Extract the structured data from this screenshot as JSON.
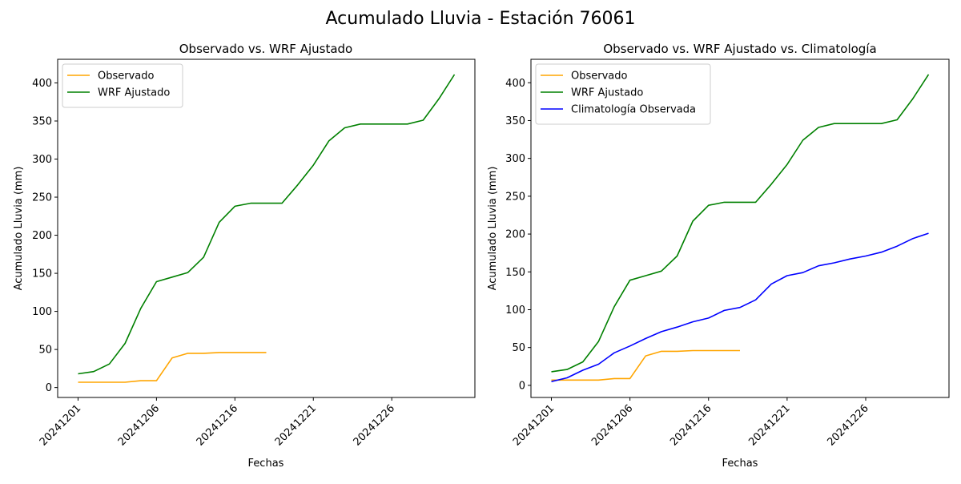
{
  "figure_title": "Acumulado Lluvia - Estación 76061",
  "colors": {
    "observado": "#ffa500",
    "wrf": "#008000",
    "clima": "#0000ff"
  },
  "chart_data": [
    {
      "type": "line",
      "title": "Observado vs. WRF Ajustado",
      "xlabel": "Fechas",
      "ylabel": "Acumulado Lluvia (mm)",
      "xticks": [
        "20241201",
        "20241206",
        "20241216",
        "20241221",
        "20241226"
      ],
      "yticks": [
        0,
        50,
        100,
        150,
        200,
        250,
        300,
        350,
        400
      ],
      "xlim": [
        -1.3,
        25.3
      ],
      "ylim": [
        -13,
        431
      ],
      "legend_position": "upper left",
      "series": [
        {
          "name": "Observado",
          "color_key": "observado",
          "x": [
            0,
            1,
            2,
            3,
            4,
            5,
            6,
            7,
            8,
            9,
            10,
            11,
            12
          ],
          "y": [
            7,
            7,
            7,
            7,
            9,
            9,
            39,
            45,
            45,
            46,
            46,
            46,
            46
          ]
        },
        {
          "name": "WRF Ajustado",
          "color_key": "wrf",
          "x": [
            0,
            1,
            2,
            3,
            4,
            5,
            6,
            7,
            8,
            9,
            10,
            11,
            12,
            13,
            14,
            15,
            16,
            17,
            18,
            19,
            20,
            21,
            22,
            23,
            24
          ],
          "y": [
            18,
            21,
            31,
            58,
            104,
            139,
            145,
            151,
            171,
            217,
            238,
            242,
            242,
            242,
            266,
            292,
            324,
            341,
            346,
            346,
            346,
            346,
            351,
            379,
            411
          ]
        }
      ]
    },
    {
      "type": "line",
      "title": "Observado vs. WRF Ajustado vs. Climatología",
      "xlabel": "Fechas",
      "ylabel": "Acumulado Lluvia (mm)",
      "xticks": [
        "20241201",
        "20241206",
        "20241216",
        "20241221",
        "20241226"
      ],
      "yticks": [
        0,
        50,
        100,
        150,
        200,
        250,
        300,
        350,
        400
      ],
      "xlim": [
        -1.3,
        25.3
      ],
      "ylim": [
        -16,
        431
      ],
      "legend_position": "upper left",
      "series": [
        {
          "name": "Observado",
          "color_key": "observado",
          "x": [
            0,
            1,
            2,
            3,
            4,
            5,
            6,
            7,
            8,
            9,
            10,
            11,
            12
          ],
          "y": [
            7,
            7,
            7,
            7,
            9,
            9,
            39,
            45,
            45,
            46,
            46,
            46,
            46
          ]
        },
        {
          "name": "WRF Ajustado",
          "color_key": "wrf",
          "x": [
            0,
            1,
            2,
            3,
            4,
            5,
            6,
            7,
            8,
            9,
            10,
            11,
            12,
            13,
            14,
            15,
            16,
            17,
            18,
            19,
            20,
            21,
            22,
            23,
            24
          ],
          "y": [
            18,
            21,
            31,
            58,
            104,
            139,
            145,
            151,
            171,
            217,
            238,
            242,
            242,
            242,
            266,
            292,
            324,
            341,
            346,
            346,
            346,
            346,
            351,
            379,
            411
          ]
        },
        {
          "name": "Climatología Observada",
          "color_key": "clima",
          "x": [
            0,
            1,
            2,
            3,
            4,
            5,
            6,
            7,
            8,
            9,
            10,
            11,
            12,
            13,
            14,
            15,
            16,
            17,
            18,
            19,
            20,
            21,
            22,
            23,
            24
          ],
          "y": [
            5,
            10,
            20,
            28,
            43,
            52,
            62,
            71,
            77,
            84,
            89,
            99,
            103,
            113,
            134,
            145,
            149,
            158,
            162,
            167,
            171,
            176,
            184,
            194,
            201
          ]
        }
      ]
    }
  ]
}
